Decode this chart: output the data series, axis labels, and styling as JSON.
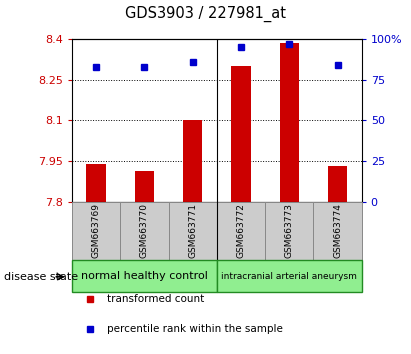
{
  "title": "GDS3903 / 227981_at",
  "samples": [
    "GSM663769",
    "GSM663770",
    "GSM663771",
    "GSM663772",
    "GSM663773",
    "GSM663774"
  ],
  "bar_values": [
    7.94,
    7.915,
    8.1,
    8.3,
    8.385,
    7.93
  ],
  "percentile_values": [
    83,
    83,
    86,
    95,
    97,
    84
  ],
  "y_min": 7.8,
  "y_max": 8.4,
  "y_ticks": [
    7.8,
    7.95,
    8.1,
    8.25,
    8.4
  ],
  "y_tick_labels": [
    "7.8",
    "7.95",
    "8.1",
    "8.25",
    "8.4"
  ],
  "y2_ticks": [
    0,
    25,
    50,
    75,
    100
  ],
  "y2_tick_labels": [
    "0",
    "25",
    "50",
    "75",
    "100%"
  ],
  "bar_color": "#cc0000",
  "dot_color": "#0000cc",
  "grid_color": "#000000",
  "group1_label": "normal healthy control",
  "group2_label": "intracranial arterial aneurysm",
  "group1_color": "#90ee90",
  "group2_color": "#90ee90",
  "group_border_color": "#228B22",
  "sample_box_color": "#cccccc",
  "disease_state_label": "disease state",
  "legend_bar_label": "transformed count",
  "legend_dot_label": "percentile rank within the sample",
  "left_color": "#cc0000",
  "right_color": "#0000cc",
  "figsize": [
    4.11,
    3.54
  ],
  "dpi": 100
}
